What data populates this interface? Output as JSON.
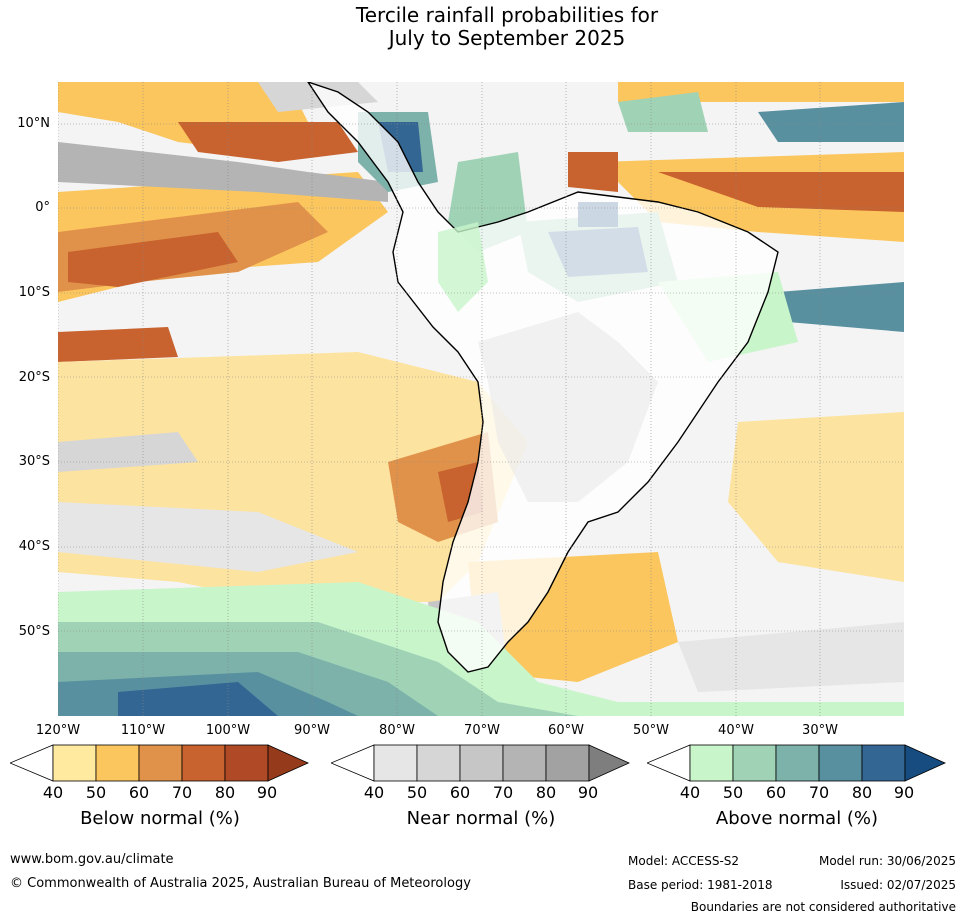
{
  "title": {
    "line1": "Tercile rainfall probabilities for",
    "line2": "July to September 2025"
  },
  "map": {
    "lat_labels": [
      "10°N",
      "0°",
      "10°S",
      "20°S",
      "30°S",
      "40°S",
      "50°S"
    ],
    "lon_labels": [
      "120°W",
      "110°W",
      "100°W",
      "90°W",
      "80°W",
      "70°W",
      "60°W",
      "50°W",
      "40°W",
      "30°W"
    ]
  },
  "legends": [
    {
      "title": "Below normal (%)",
      "ticks": [
        "40",
        "50",
        "60",
        "70",
        "80",
        "90"
      ],
      "colors": [
        "#ffeaa0",
        "#fcc65e",
        "#e0924a",
        "#c8622e",
        "#b04a26",
        "#963a1c"
      ]
    },
    {
      "title": "Near normal (%)",
      "ticks": [
        "40",
        "50",
        "60",
        "70",
        "80",
        "90"
      ],
      "colors": [
        "#e6e6e6",
        "#d6d6d6",
        "#c6c6c6",
        "#b4b4b4",
        "#a2a2a2",
        "#7e7e7e"
      ]
    },
    {
      "title": "Above normal (%)",
      "ticks": [
        "40",
        "50",
        "60",
        "70",
        "80",
        "90"
      ],
      "colors": [
        "#c8f5ca",
        "#a0d2b6",
        "#7cb2aa",
        "#5890a0",
        "#346694",
        "#164c80"
      ]
    }
  ],
  "footer": {
    "website": "www.bom.gov.au/climate",
    "copyright": "© Commonwealth of Australia 2025, Australian Bureau of Meteorology",
    "model": "Model: ACCESS-S2",
    "model_run": "Model run: 30/06/2025",
    "base_period": "Base period: 1981-2018",
    "issued": "Issued: 02/07/2025",
    "disclaimer": "Boundaries are not considered authoritative"
  }
}
